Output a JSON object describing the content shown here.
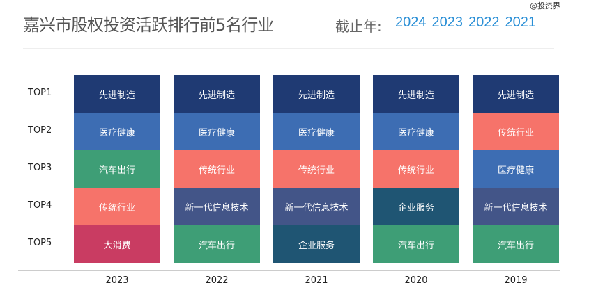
{
  "header": {
    "title": "嘉兴市股权投资活跃排行前5名行业",
    "asof_label": "截止年:",
    "year_options": [
      "2024",
      "2023",
      "2022",
      "2021"
    ],
    "watermark": "@投资界"
  },
  "chart_data": {
    "type": "table",
    "title": "嘉兴市股权投资活跃排行前5名行业",
    "categories": [
      "2023",
      "2022",
      "2021",
      "2020",
      "2019"
    ],
    "rows": [
      "TOP1",
      "TOP2",
      "TOP3",
      "TOP4",
      "TOP5"
    ],
    "values": [
      [
        "先进制造",
        "医疗健康",
        "汽车出行",
        "传统行业",
        "大消费"
      ],
      [
        "先进制造",
        "医疗健康",
        "传统行业",
        "新一代信息技术",
        "汽车出行"
      ],
      [
        "先进制造",
        "医疗健康",
        "传统行业",
        "新一代信息技术",
        "企业服务"
      ],
      [
        "先进制造",
        "医疗健康",
        "传统行业",
        "企业服务",
        "汽车出行"
      ],
      [
        "先进制造",
        "传统行业",
        "医疗健康",
        "新一代信息技术",
        "汽车出行"
      ]
    ],
    "colors": {
      "先进制造": "#1f3a73",
      "医疗健康": "#3d6db3",
      "汽车出行": "#3e9e76",
      "传统行业": "#f6736a",
      "大消费": "#c93c62",
      "新一代信息技术": "#435588",
      "企业服务": "#1f5573"
    }
  }
}
